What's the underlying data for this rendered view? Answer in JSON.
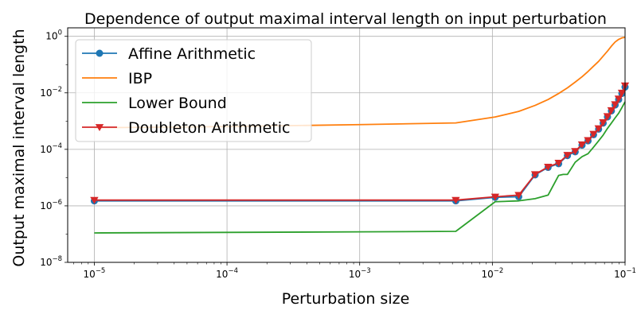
{
  "chart_data": {
    "type": "line",
    "title": "Dependence of output maximal interval length on input perturbation",
    "xlabel": "Perturbation size",
    "ylabel": "Output maximal interval length",
    "xscale": "log",
    "yscale": "log",
    "xlim": [
      6.3e-06,
      0.1
    ],
    "ylim": [
      1e-08,
      2.0
    ],
    "grid": true,
    "legend_position": "top-left",
    "x_ticks": [
      {
        "value": 1e-05,
        "base": "10",
        "exp": "−5"
      },
      {
        "value": 0.0001,
        "base": "10",
        "exp": "−4"
      },
      {
        "value": 0.001,
        "base": "10",
        "exp": "−3"
      },
      {
        "value": 0.01,
        "base": "10",
        "exp": "−2"
      },
      {
        "value": 0.1,
        "base": "10",
        "exp": "−1"
      }
    ],
    "y_ticks": [
      {
        "value": 1e-08,
        "base": "10",
        "exp": "−8"
      },
      {
        "value": 1e-06,
        "base": "10",
        "exp": "−6"
      },
      {
        "value": 0.0001,
        "base": "10",
        "exp": "−4"
      },
      {
        "value": 0.01,
        "base": "10",
        "exp": "−2"
      },
      {
        "value": 1,
        "base": "10",
        "exp": "0"
      }
    ],
    "series": [
      {
        "name": "Affine Arithmetic",
        "color": "#1f77b4",
        "marker": "circle",
        "points": [
          [
            1e-05,
            1.5e-06
          ],
          [
            0.0053,
            1.5e-06
          ],
          [
            0.0105,
            2e-06
          ],
          [
            0.0158,
            2.1e-06
          ],
          [
            0.021,
            1.25e-05
          ],
          [
            0.0263,
            2.3e-05
          ],
          [
            0.0316,
            3.1e-05
          ],
          [
            0.0368,
            6e-05
          ],
          [
            0.0421,
            8.2e-05
          ],
          [
            0.0474,
            0.00014
          ],
          [
            0.0526,
            0.0002
          ],
          [
            0.0579,
            0.00033
          ],
          [
            0.0632,
            0.00052
          ],
          [
            0.0684,
            0.00085
          ],
          [
            0.0737,
            0.0014
          ],
          [
            0.0789,
            0.0023
          ],
          [
            0.0842,
            0.0037
          ],
          [
            0.0895,
            0.0058
          ],
          [
            0.0947,
            0.0095
          ],
          [
            0.1,
            0.016
          ]
        ]
      },
      {
        "name": "IBP",
        "color": "#ff7f0e",
        "marker": "none",
        "points": [
          [
            1e-05,
            0.00058
          ],
          [
            0.0001,
            0.00064
          ],
          [
            0.001,
            0.00075
          ],
          [
            0.0053,
            0.00086
          ],
          [
            0.0105,
            0.0014
          ],
          [
            0.0158,
            0.0022
          ],
          [
            0.021,
            0.0036
          ],
          [
            0.0263,
            0.0058
          ],
          [
            0.0316,
            0.0095
          ],
          [
            0.0368,
            0.015
          ],
          [
            0.0421,
            0.024
          ],
          [
            0.0474,
            0.037
          ],
          [
            0.0526,
            0.057
          ],
          [
            0.0579,
            0.088
          ],
          [
            0.0632,
            0.13
          ],
          [
            0.0684,
            0.2
          ],
          [
            0.0737,
            0.3
          ],
          [
            0.0789,
            0.45
          ],
          [
            0.0842,
            0.63
          ],
          [
            0.0895,
            0.78
          ],
          [
            0.0947,
            0.88
          ],
          [
            0.1,
            0.92
          ]
        ]
      },
      {
        "name": "Lower Bound",
        "color": "#2ca02c",
        "marker": "none",
        "points": [
          [
            1e-05,
            1.1e-07
          ],
          [
            0.001,
            1.2e-07
          ],
          [
            0.0053,
            1.25e-07
          ],
          [
            0.0105,
            1.4e-06
          ],
          [
            0.0158,
            1.5e-06
          ],
          [
            0.021,
            1.8e-06
          ],
          [
            0.0263,
            2.4e-06
          ],
          [
            0.0316,
            1.2e-05
          ],
          [
            0.0342,
            1.3e-05
          ],
          [
            0.0368,
            1.3e-05
          ],
          [
            0.0421,
            3.5e-05
          ],
          [
            0.0474,
            5.5e-05
          ],
          [
            0.0526,
            7e-05
          ],
          [
            0.0579,
            0.00012
          ],
          [
            0.0632,
            0.0002
          ],
          [
            0.0684,
            0.00032
          ],
          [
            0.0737,
            0.00055
          ],
          [
            0.0789,
            0.00085
          ],
          [
            0.0842,
            0.0013
          ],
          [
            0.0895,
            0.0019
          ],
          [
            0.0947,
            0.003
          ],
          [
            0.1,
            0.0048
          ]
        ]
      },
      {
        "name": "Doubleton Arithmetic",
        "color": "#d62728",
        "marker": "triangle-down",
        "points": [
          [
            1e-05,
            1.6e-06
          ],
          [
            0.0053,
            1.6e-06
          ],
          [
            0.0105,
            2.1e-06
          ],
          [
            0.0158,
            2.4e-06
          ],
          [
            0.021,
            1.3e-05
          ],
          [
            0.0263,
            2.4e-05
          ],
          [
            0.0316,
            3.3e-05
          ],
          [
            0.0368,
            6.3e-05
          ],
          [
            0.0421,
            8.6e-05
          ],
          [
            0.0474,
            0.000148
          ],
          [
            0.0526,
            0.00021
          ],
          [
            0.0579,
            0.00035
          ],
          [
            0.0632,
            0.00055
          ],
          [
            0.0684,
            0.0009
          ],
          [
            0.0737,
            0.00148
          ],
          [
            0.0789,
            0.0024
          ],
          [
            0.0842,
            0.0039
          ],
          [
            0.0895,
            0.0062
          ],
          [
            0.0947,
            0.01
          ],
          [
            0.1,
            0.018
          ]
        ]
      }
    ]
  }
}
